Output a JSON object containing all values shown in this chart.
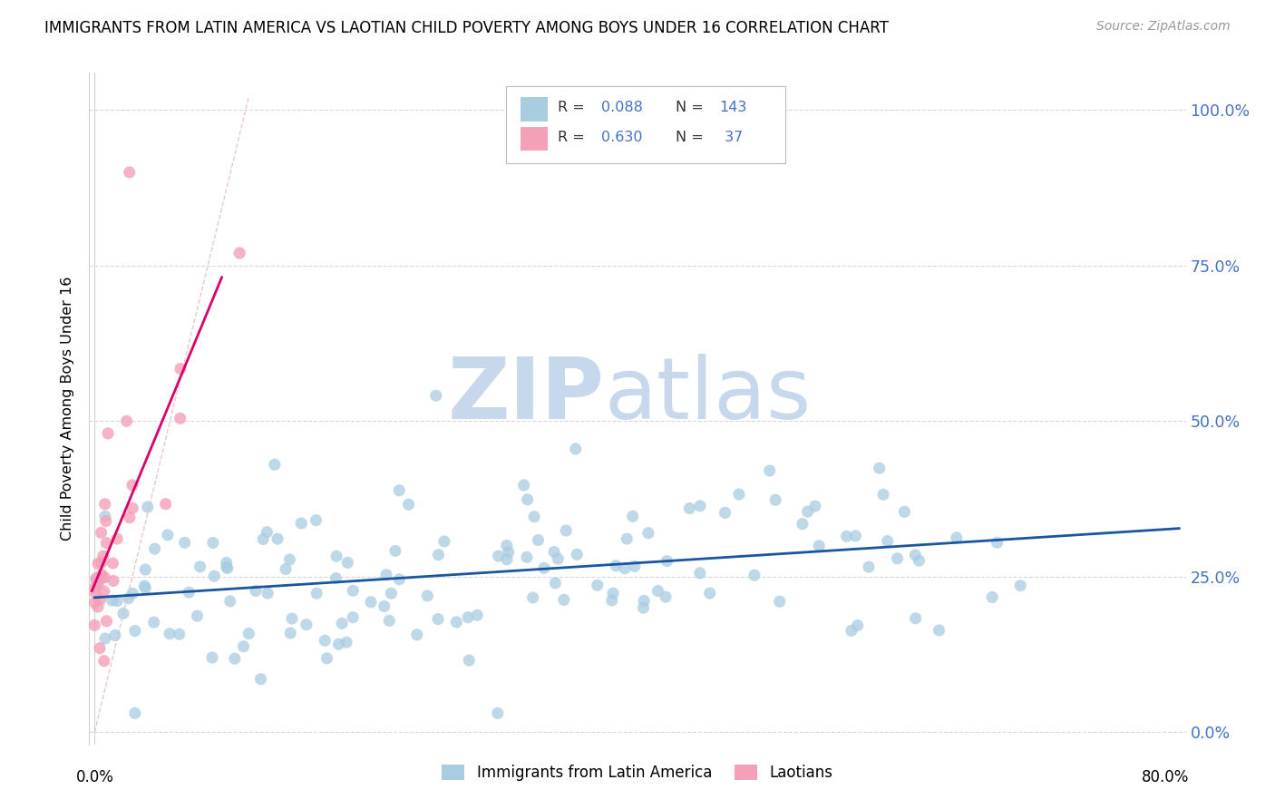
{
  "title": "IMMIGRANTS FROM LATIN AMERICA VS LAOTIAN CHILD POVERTY AMONG BOYS UNDER 16 CORRELATION CHART",
  "source": "Source: ZipAtlas.com",
  "ylabel": "Child Poverty Among Boys Under 16",
  "xlim": [
    -0.004,
    0.815
  ],
  "ylim": [
    -0.02,
    1.06
  ],
  "ytick_vals": [
    0.0,
    0.25,
    0.5,
    0.75,
    1.0
  ],
  "ytick_labels": [
    "0.0%",
    "25.0%",
    "50.0%",
    "75.0%",
    "100.0%"
  ],
  "legend_label_blue": "Immigrants from Latin America",
  "legend_label_pink": "Laotians",
  "blue_color": "#a8cce0",
  "pink_color": "#f4a0b8",
  "blue_line_color": "#1a56a0",
  "pink_line_color": "#d9006c",
  "dash_color": "#cccccc",
  "watermark_zip_color": "#c8d8ec",
  "watermark_atlas_color": "#c8d8ec",
  "right_tick_color": "#4472c4",
  "grid_color": "#d8d8d8",
  "spine_color": "#d0d0d0"
}
